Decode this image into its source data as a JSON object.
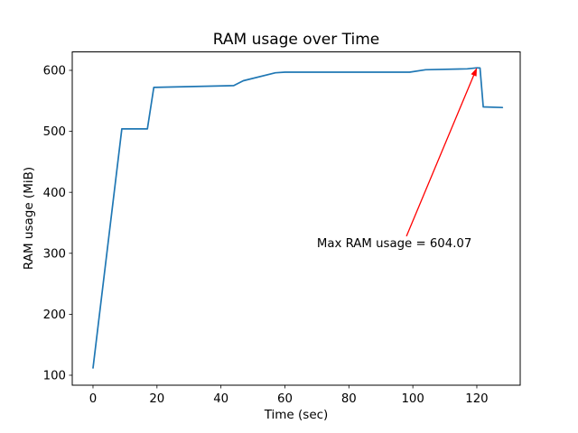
{
  "figure": {
    "background": "#ffffff"
  },
  "chart_data": {
    "type": "line",
    "title": "RAM usage over Time",
    "xlabel": "Time (sec)",
    "ylabel": "RAM usage (MiB)",
    "x_ticks": [
      0,
      20,
      40,
      60,
      80,
      100,
      120
    ],
    "y_ticks": [
      100,
      200,
      300,
      400,
      500,
      600
    ],
    "xlim": [
      -6.49,
      133.56
    ],
    "ylim": [
      83.7,
      630.3
    ],
    "grid": false,
    "legend": "none",
    "line_color": "#1f77b4",
    "axis_color": "#000000",
    "series": [
      {
        "name": "RAM usage",
        "points": [
          [
            0,
            112
          ],
          [
            9,
            504
          ],
          [
            17,
            504
          ],
          [
            19,
            572
          ],
          [
            44,
            575
          ],
          [
            47,
            583
          ],
          [
            57,
            596
          ],
          [
            60,
            597
          ],
          [
            99,
            597
          ],
          [
            104,
            601
          ],
          [
            117,
            602.5
          ],
          [
            120,
            604.07
          ],
          [
            121,
            604
          ],
          [
            122,
            540
          ],
          [
            128,
            539
          ]
        ]
      }
    ],
    "annotation": {
      "text": "Max RAM usage = 604.07",
      "xy": [
        120,
        604.07
      ],
      "xytext": [
        70,
        310
      ],
      "arrow_start": [
        98,
        328
      ],
      "color": "#ff0000"
    }
  }
}
